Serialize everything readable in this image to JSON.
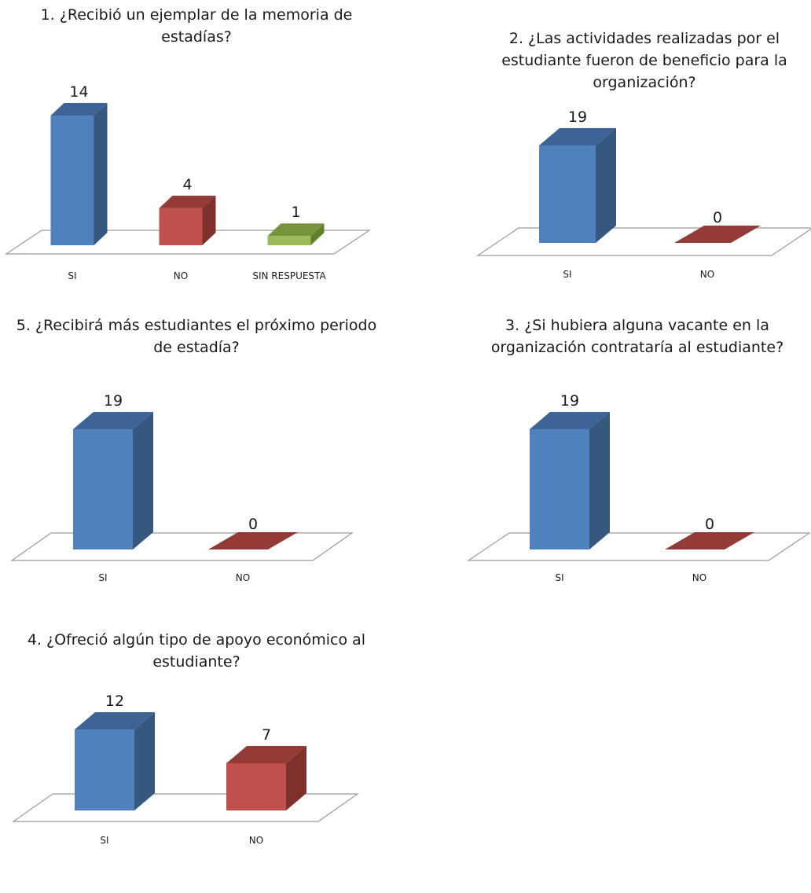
{
  "colors": {
    "SI": {
      "front": "#4F81BD",
      "side": "#36587F",
      "top": "#3D6397"
    },
    "NO": {
      "front": "#C0504D",
      "side": "#7E302D",
      "top": "#943A37"
    },
    "SIN RESPUESTA": {
      "front": "#9BBB59",
      "side": "#63802C",
      "top": "#77933C"
    }
  },
  "chart_data": [
    {
      "type": "bar",
      "title": "1. ¿Recibió un ejemplar de la memoria de estadías?",
      "categories": [
        "SI",
        "NO",
        "SIN RESPUESTA"
      ],
      "values": [
        14,
        4,
        1
      ],
      "ylim": [
        0,
        14
      ],
      "grid": false
    },
    {
      "type": "bar",
      "title": "2. ¿Las actividades realizadas por el estudiante fueron de beneficio para la organización?",
      "categories": [
        "SI",
        "NO"
      ],
      "values": [
        19,
        0
      ],
      "ylim": [
        0,
        19
      ],
      "grid": false
    },
    {
      "type": "bar",
      "title": "5. ¿Recibirá más estudiantes el próximo periodo de estadía?",
      "categories": [
        "SI",
        "NO"
      ],
      "values": [
        19,
        0
      ],
      "ylim": [
        0,
        19
      ],
      "grid": false
    },
    {
      "type": "bar",
      "title": "3. ¿Si hubiera alguna vacante en la organización contrataría al estudiante?",
      "categories": [
        "SI",
        "NO"
      ],
      "values": [
        19,
        0
      ],
      "ylim": [
        0,
        19
      ],
      "grid": false
    },
    {
      "type": "bar",
      "title": "4. ¿Ofreció algún tipo de apoyo económico al estudiante?",
      "categories": [
        "SI",
        "NO"
      ],
      "values": [
        12,
        7
      ],
      "ylim": [
        0,
        19
      ],
      "grid": false
    }
  ]
}
